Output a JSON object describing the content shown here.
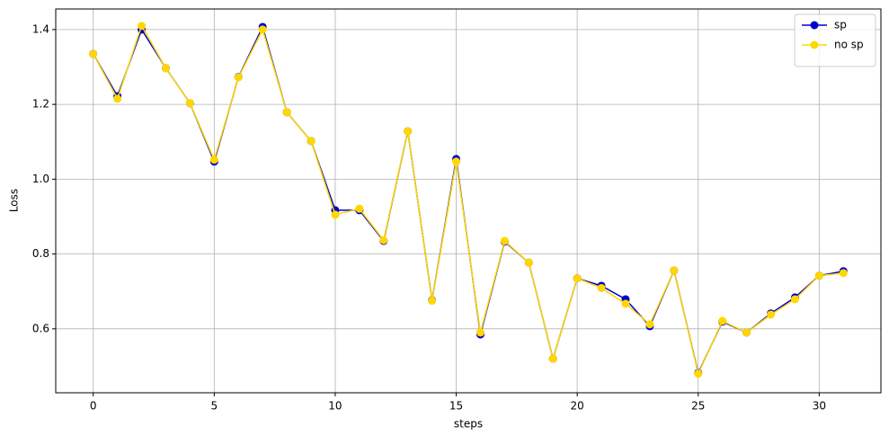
{
  "chart_data": {
    "type": "line",
    "xlabel": "steps",
    "ylabel": "Loss",
    "x": [
      0,
      1,
      2,
      3,
      4,
      5,
      6,
      7,
      8,
      9,
      10,
      11,
      12,
      13,
      14,
      15,
      16,
      17,
      18,
      19,
      20,
      21,
      22,
      23,
      24,
      25,
      26,
      27,
      28,
      29,
      30,
      31
    ],
    "series": [
      {
        "name": "sp",
        "color": "#0000cc",
        "values": [
          1.335,
          1.222,
          1.4,
          1.297,
          1.203,
          1.047,
          1.273,
          1.407,
          1.179,
          1.102,
          0.917,
          0.917,
          0.835,
          1.128,
          0.676,
          1.054,
          0.585,
          0.833,
          0.777,
          0.52,
          0.735,
          0.715,
          0.679,
          0.607,
          0.756,
          0.482,
          0.619,
          0.59,
          0.641,
          0.684,
          0.742,
          0.754
        ]
      },
      {
        "name": "no sp",
        "color": "#ffd700",
        "values": [
          1.335,
          1.215,
          1.41,
          1.297,
          1.203,
          1.052,
          1.272,
          1.4,
          1.179,
          1.102,
          0.905,
          0.921,
          0.837,
          1.128,
          0.675,
          1.047,
          0.59,
          0.835,
          0.777,
          0.52,
          0.735,
          0.709,
          0.667,
          0.612,
          0.756,
          0.48,
          0.621,
          0.59,
          0.638,
          0.679,
          0.742,
          0.749
        ]
      }
    ],
    "xlim": [
      -1.55,
      32.55
    ],
    "xticks": [
      0,
      5,
      10,
      15,
      20,
      25,
      30
    ],
    "ylim": [
      0.429,
      1.455
    ],
    "yticks": [
      0.6,
      0.8,
      {
        "value": 1,
        "label": "1.0"
      },
      1.2,
      1.4
    ],
    "grid": true,
    "legend": "upper right"
  }
}
